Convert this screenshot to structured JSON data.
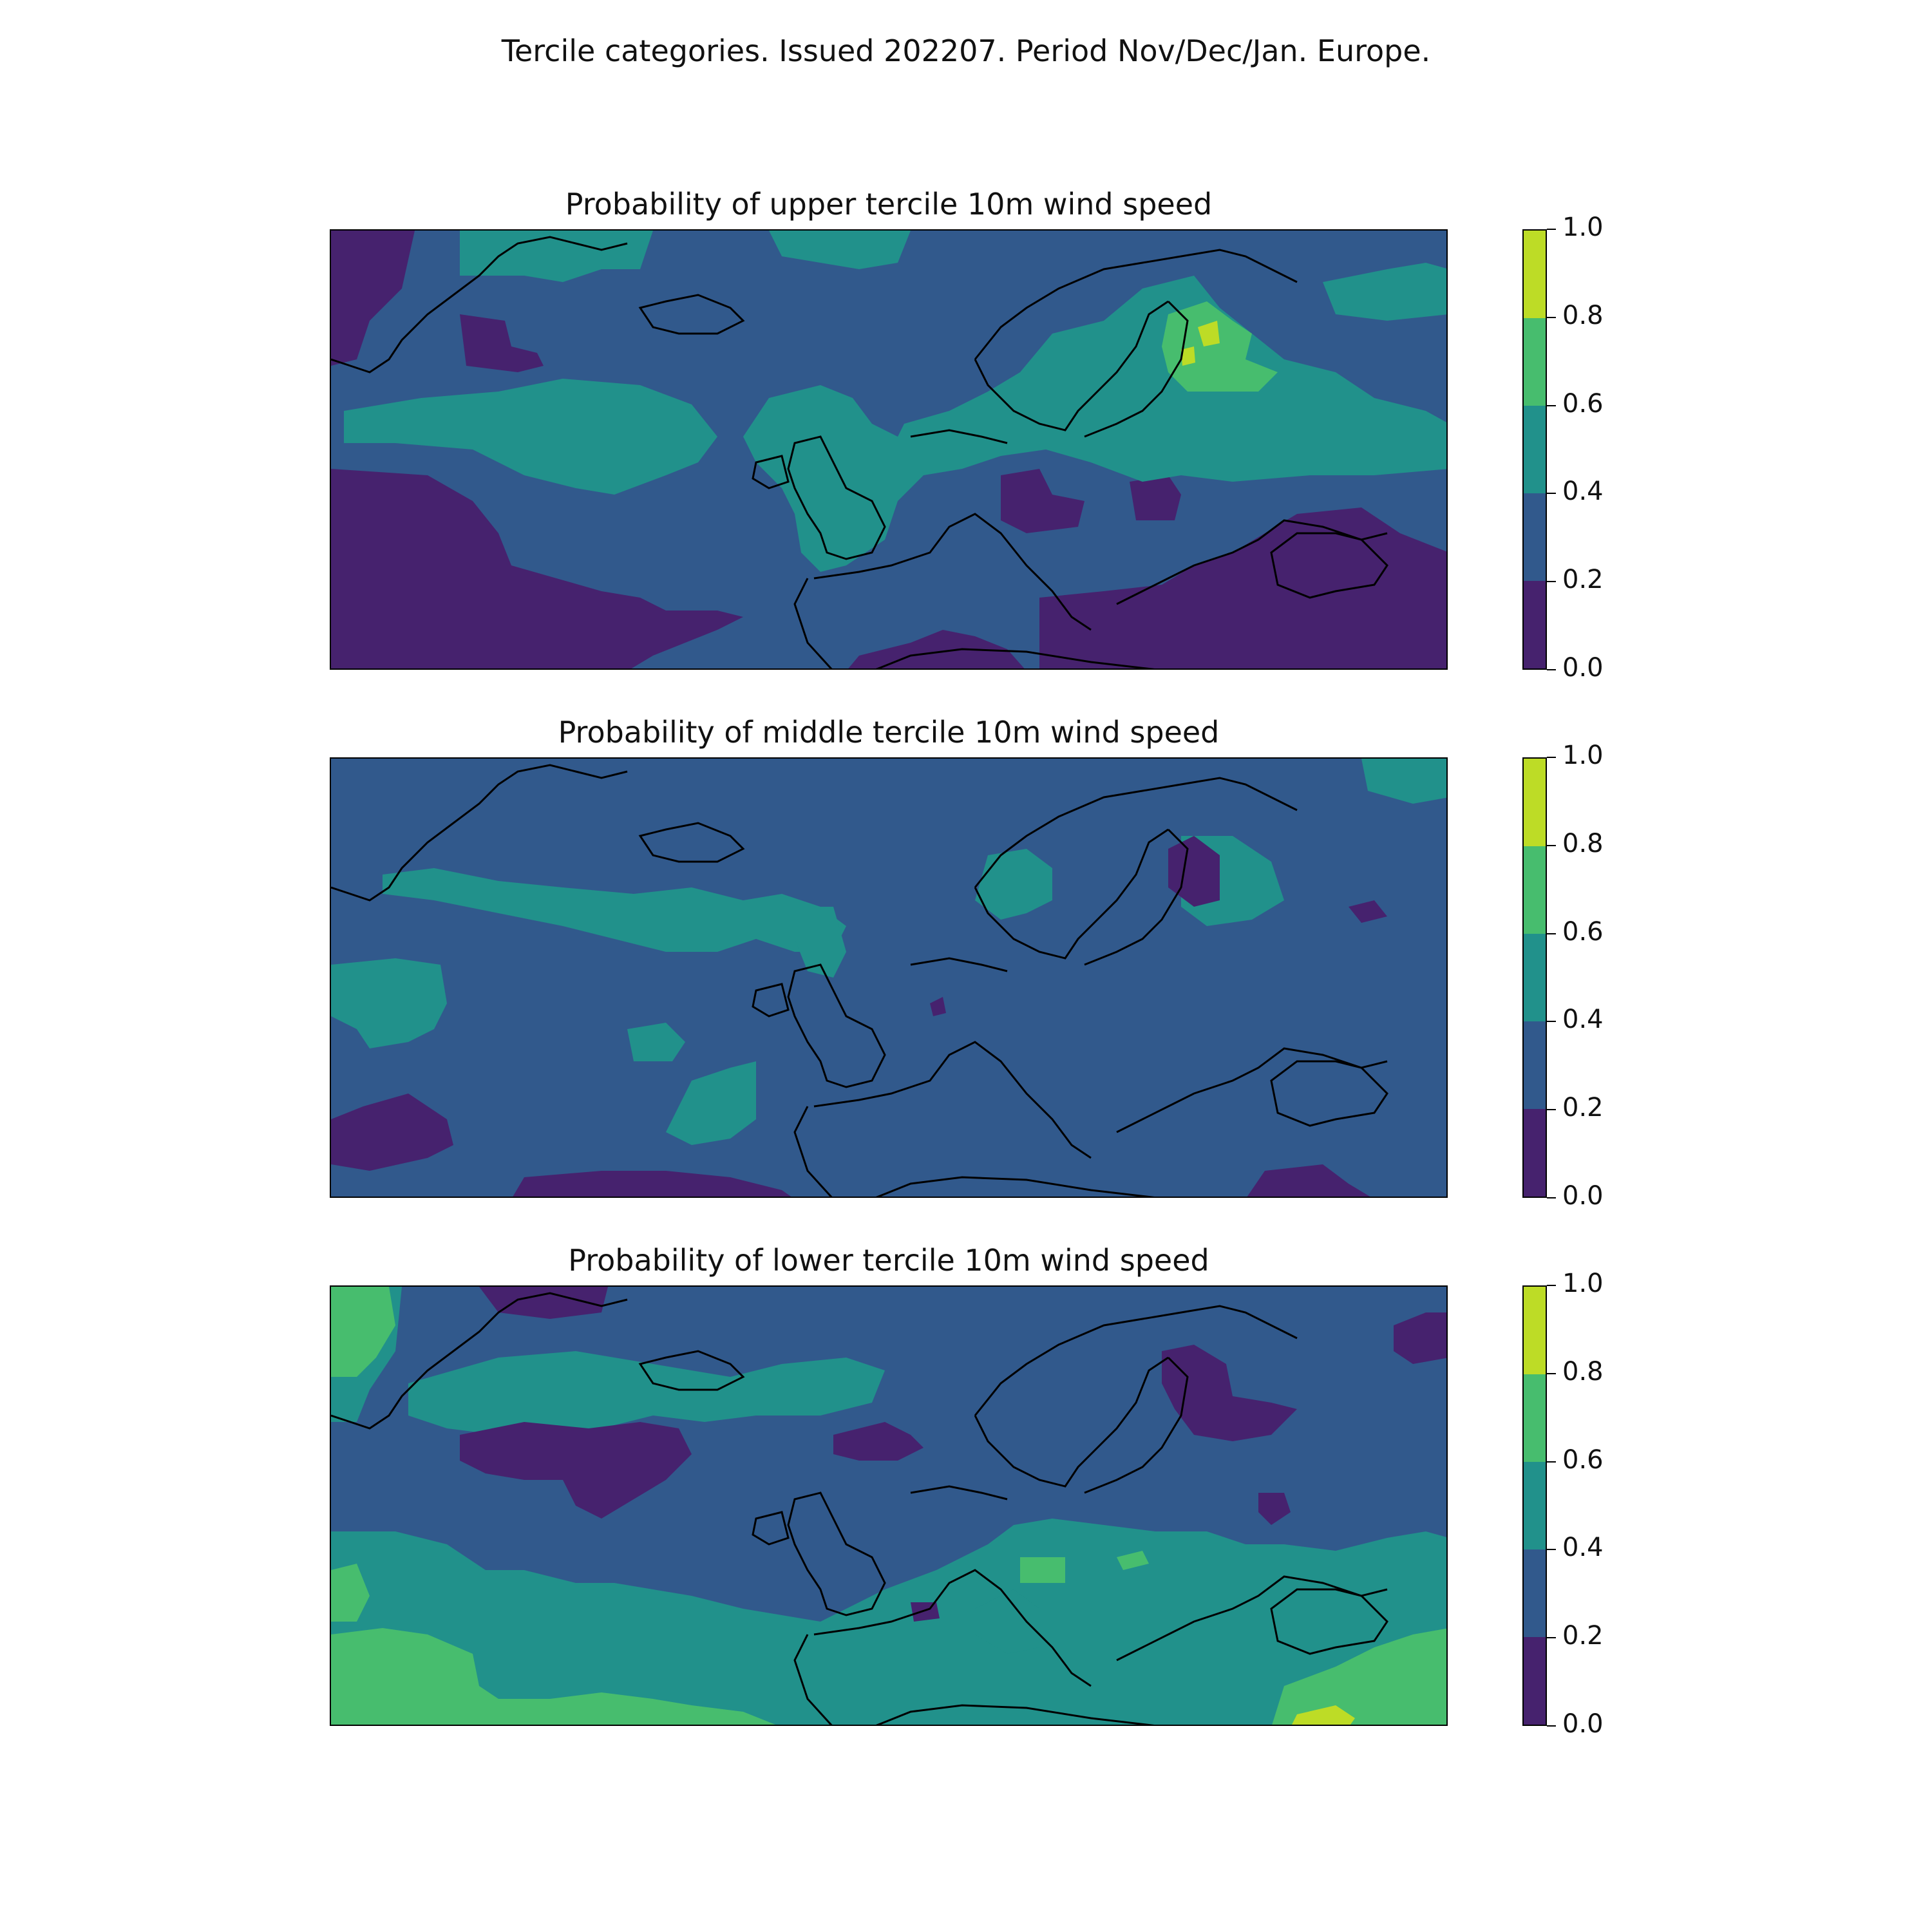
{
  "figure_title": "Tercile categories. Issued 202207. Period Nov/Dec/Jan. Europe.",
  "colors": {
    "c0": "#46226e",
    "c1": "#31598c",
    "c2": "#21918b",
    "c3": "#47bd6e",
    "c4": "#bddc26",
    "coastline": "#000000"
  },
  "colorbar": {
    "levels": [
      0.0,
      0.2,
      0.4,
      0.6,
      0.8,
      1.0
    ],
    "tick_labels": [
      "0.0",
      "0.2",
      "0.4",
      "0.6",
      "0.8",
      "1.0"
    ]
  },
  "panels": [
    {
      "title": "Probability of upper tercile 10m wind speed"
    },
    {
      "title": "Probability of middle tercile 10m wind speed"
    },
    {
      "title": "Probability of lower tercile 10m wind speed"
    }
  ],
  "chart_data": {
    "type": "heatmap",
    "region": "Europe",
    "value_range": [
      0.0,
      1.0
    ],
    "bins": [
      [
        0.0,
        0.2
      ],
      [
        0.2,
        0.4
      ],
      [
        0.4,
        0.6
      ],
      [
        0.6,
        0.8
      ],
      [
        0.8,
        1.0
      ]
    ],
    "series": [
      {
        "name": "Probability of upper tercile 10m wind speed",
        "dominant_bin": [
          0.2,
          0.4
        ],
        "max_bin": [
          0.8,
          1.0
        ]
      },
      {
        "name": "Probability of middle tercile 10m wind speed",
        "dominant_bin": [
          0.2,
          0.4
        ],
        "max_bin": [
          0.4,
          0.6
        ]
      },
      {
        "name": "Probability of lower tercile 10m wind speed",
        "dominant_bin": [
          0.2,
          0.4
        ],
        "max_bin": [
          0.8,
          1.0
        ]
      }
    ]
  }
}
